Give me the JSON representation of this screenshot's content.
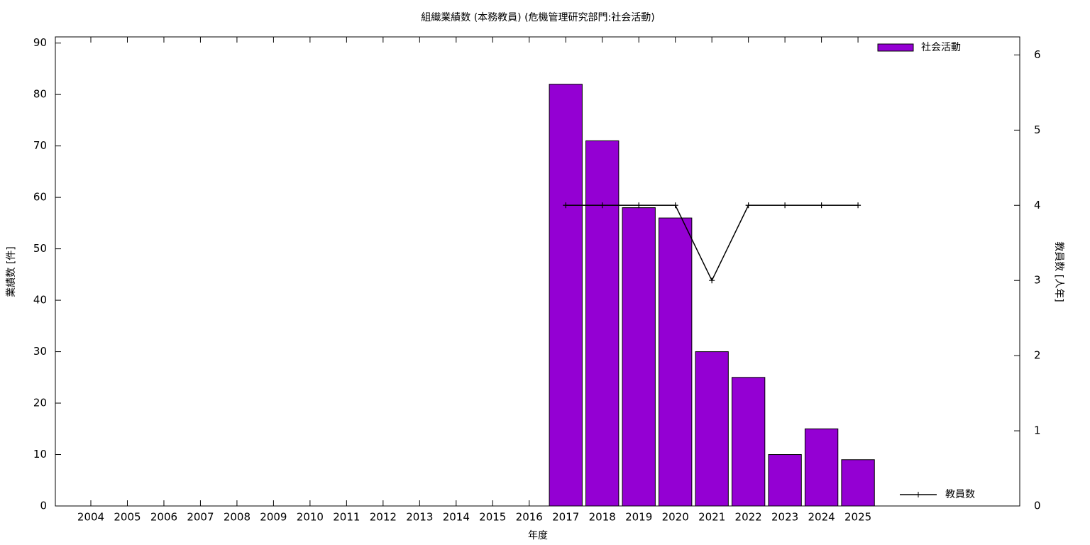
{
  "chart_data": {
    "type": "bar",
    "title": "組織業績数 (本務教員) (危機管理研究部門:社会活動)",
    "x_label": "年度",
    "y_label": "業績数 [件]",
    "y2_label": "教員数 [人年]",
    "categories": [
      "2004",
      "2005",
      "2006",
      "2007",
      "2008",
      "2009",
      "2010",
      "2011",
      "2012",
      "2013",
      "2014",
      "2015",
      "2016",
      "2017",
      "2018",
      "2019",
      "2020",
      "2021",
      "2022",
      "2023",
      "2024",
      "2025"
    ],
    "series": [
      {
        "name": "社会活動",
        "type": "bar",
        "color": "#9400d3",
        "values": [
          null,
          null,
          null,
          null,
          null,
          null,
          null,
          null,
          null,
          null,
          null,
          null,
          null,
          82,
          71,
          58,
          56,
          30,
          25,
          10,
          15,
          9
        ]
      },
      {
        "name": "教員数",
        "type": "line",
        "axis": "y2",
        "color": "#000000",
        "values": [
          null,
          null,
          null,
          null,
          null,
          null,
          null,
          null,
          null,
          null,
          null,
          null,
          null,
          4,
          4,
          4,
          4,
          3,
          4,
          4,
          4,
          4
        ]
      }
    ],
    "ylim": [
      0,
      91.2
    ],
    "yticks": [
      0,
      10,
      20,
      30,
      40,
      50,
      60,
      70,
      80,
      90
    ],
    "y2lim": [
      0,
      6.24
    ],
    "y2ticks": [
      0,
      1,
      2,
      3,
      4,
      5,
      6
    ]
  }
}
